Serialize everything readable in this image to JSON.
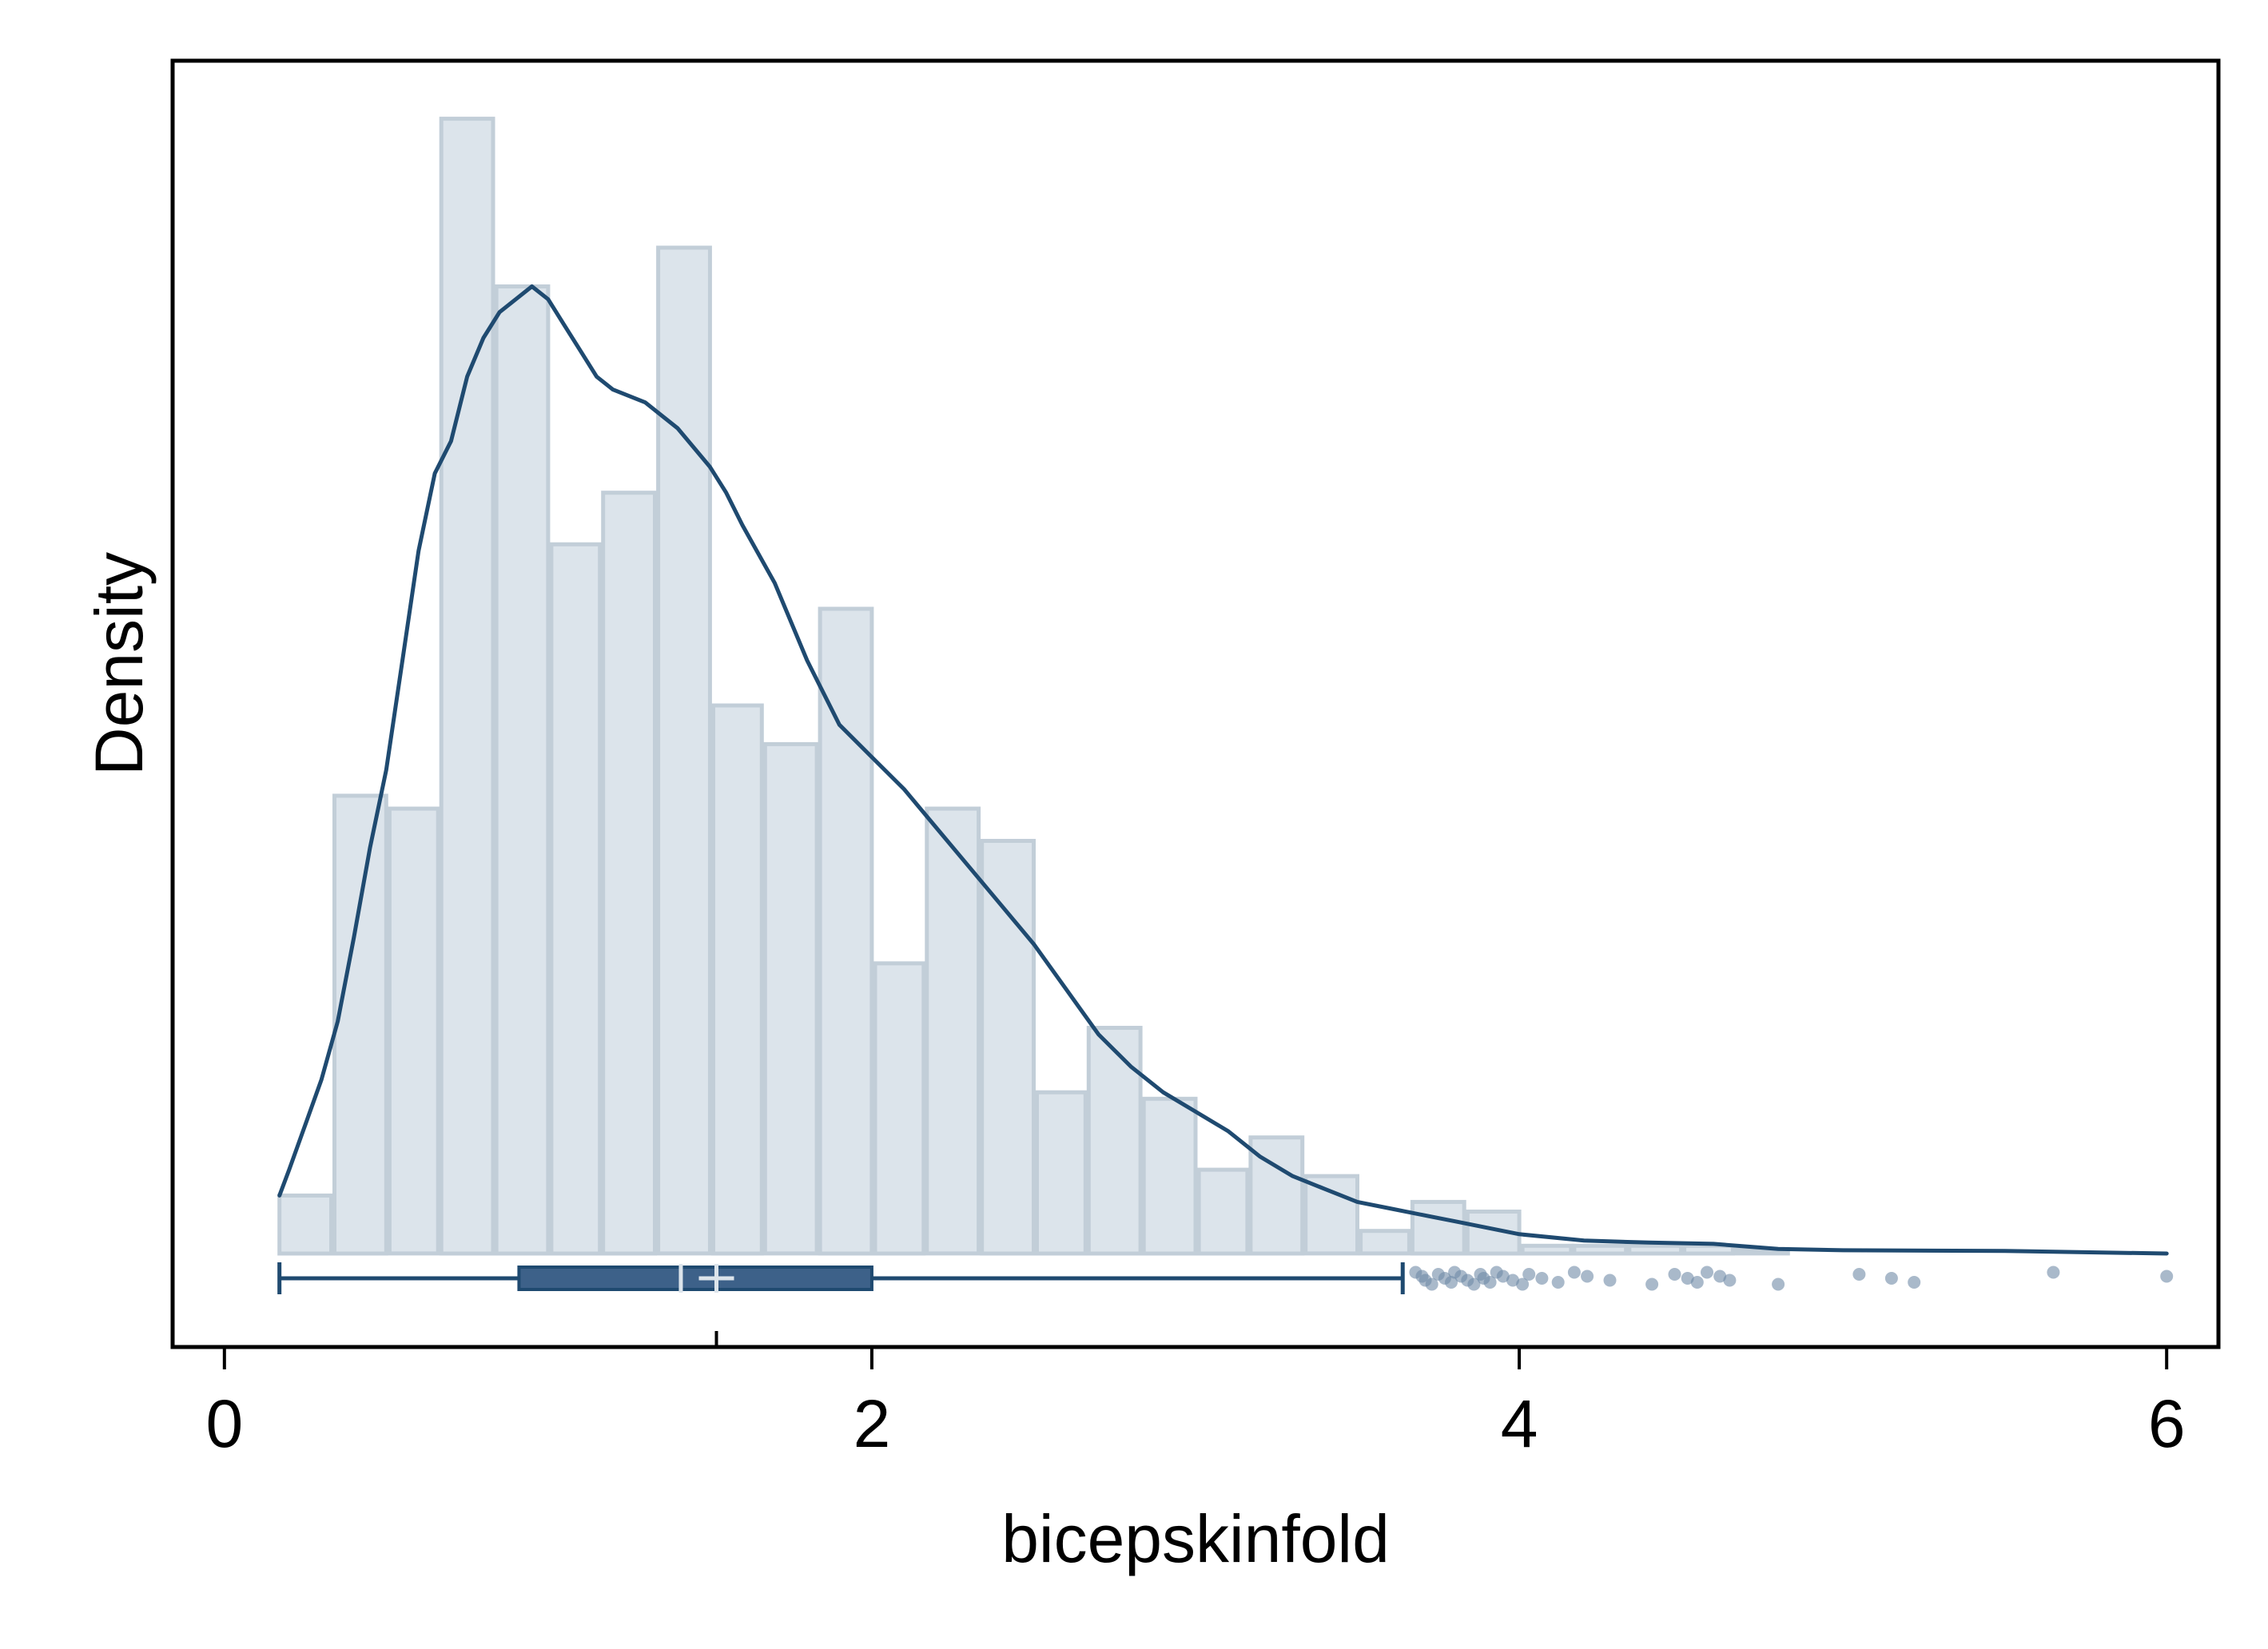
{
  "chart_data": {
    "type": "histogram",
    "xlabel": "bicepskinfold",
    "ylabel": "Density",
    "xlim": [
      -0.16,
      6.16
    ],
    "ylim": [
      -0.145,
      1.85
    ],
    "xticks": [
      0,
      2,
      4,
      6
    ],
    "ytick_labels_shown": false,
    "grid": false,
    "legend": "none",
    "histogram": {
      "bin_width": 0.167,
      "bins": [
        {
          "x0": 0.17,
          "x1": 0.33,
          "density": 0.09
        },
        {
          "x0": 0.34,
          "x1": 0.5,
          "density": 0.71
        },
        {
          "x0": 0.51,
          "x1": 0.66,
          "density": 0.69
        },
        {
          "x0": 0.67,
          "x1": 0.83,
          "density": 1.76
        },
        {
          "x0": 0.84,
          "x1": 1.0,
          "density": 1.5
        },
        {
          "x0": 1.01,
          "x1": 1.16,
          "density": 1.1
        },
        {
          "x0": 1.17,
          "x1": 1.33,
          "density": 1.18
        },
        {
          "x0": 1.34,
          "x1": 1.5,
          "density": 1.56
        },
        {
          "x0": 1.51,
          "x1": 1.66,
          "density": 0.85
        },
        {
          "x0": 1.67,
          "x1": 1.83,
          "density": 0.79
        },
        {
          "x0": 1.84,
          "x1": 2.0,
          "density": 1.0
        },
        {
          "x0": 2.01,
          "x1": 2.16,
          "density": 0.45
        },
        {
          "x0": 2.17,
          "x1": 2.33,
          "density": 0.69
        },
        {
          "x0": 2.34,
          "x1": 2.5,
          "density": 0.64
        },
        {
          "x0": 2.51,
          "x1": 2.66,
          "density": 0.25
        },
        {
          "x0": 2.67,
          "x1": 2.83,
          "density": 0.35
        },
        {
          "x0": 2.84,
          "x1": 3.0,
          "density": 0.24
        },
        {
          "x0": 3.01,
          "x1": 3.16,
          "density": 0.13
        },
        {
          "x0": 3.17,
          "x1": 3.33,
          "density": 0.18
        },
        {
          "x0": 3.34,
          "x1": 3.5,
          "density": 0.12
        },
        {
          "x0": 3.51,
          "x1": 3.66,
          "density": 0.035
        },
        {
          "x0": 3.67,
          "x1": 3.83,
          "density": 0.08
        },
        {
          "x0": 3.84,
          "x1": 4.0,
          "density": 0.065
        },
        {
          "x0": 4.01,
          "x1": 4.16,
          "density": 0.012
        },
        {
          "x0": 4.17,
          "x1": 4.33,
          "density": 0.012
        },
        {
          "x0": 4.34,
          "x1": 4.5,
          "density": 0.012
        },
        {
          "x0": 4.51,
          "x1": 4.66,
          "density": 0.012
        },
        {
          "x0": 4.67,
          "x1": 4.83,
          "density": 0.006
        }
      ]
    },
    "kde": {
      "x": [
        0.17,
        0.2,
        0.25,
        0.3,
        0.35,
        0.4,
        0.45,
        0.5,
        0.55,
        0.6,
        0.65,
        0.7,
        0.75,
        0.8,
        0.85,
        0.9,
        0.95,
        1.0,
        1.05,
        1.1,
        1.15,
        1.2,
        1.3,
        1.4,
        1.5,
        1.55,
        1.6,
        1.7,
        1.8,
        1.9,
        2.0,
        2.1,
        2.2,
        2.3,
        2.4,
        2.5,
        2.6,
        2.7,
        2.8,
        2.9,
        3.0,
        3.1,
        3.2,
        3.3,
        3.4,
        3.5,
        3.6,
        3.7,
        3.8,
        3.9,
        4.0,
        4.2,
        4.4,
        4.6,
        4.8,
        5.0,
        5.5,
        6.0
      ],
      "y": [
        0.09,
        0.13,
        0.2,
        0.27,
        0.36,
        0.49,
        0.63,
        0.75,
        0.92,
        1.09,
        1.21,
        1.26,
        1.36,
        1.42,
        1.46,
        1.48,
        1.5,
        1.48,
        1.44,
        1.4,
        1.36,
        1.34,
        1.32,
        1.28,
        1.22,
        1.18,
        1.13,
        1.04,
        0.92,
        0.82,
        0.77,
        0.72,
        0.66,
        0.6,
        0.54,
        0.48,
        0.41,
        0.34,
        0.29,
        0.25,
        0.22,
        0.19,
        0.15,
        0.12,
        0.1,
        0.08,
        0.07,
        0.06,
        0.05,
        0.04,
        0.03,
        0.02,
        0.017,
        0.015,
        0.007,
        0.005,
        0.004,
        0.0
      ]
    },
    "boxplot": {
      "min": 0.17,
      "q1": 0.91,
      "median": 1.41,
      "mean": 1.52,
      "q3": 2.0,
      "whisker_low": 0.17,
      "whisker_high": 3.64,
      "outliers": [
        3.68,
        3.7,
        3.71,
        3.73,
        3.75,
        3.77,
        3.79,
        3.8,
        3.82,
        3.84,
        3.86,
        3.88,
        3.89,
        3.91,
        3.93,
        3.95,
        3.98,
        4.01,
        4.03,
        4.07,
        4.12,
        4.17,
        4.21,
        4.28,
        4.41,
        4.48,
        4.52,
        4.55,
        4.58,
        4.62,
        4.65,
        4.8,
        5.05,
        5.15,
        5.22,
        5.65,
        6.0
      ]
    },
    "colors": {
      "bar_fill": "#dce4eb",
      "bar_edge": "#c2ced8",
      "line": "#1f4a70",
      "box_fill": "#3d6189",
      "mean_marker": "#dce4eb",
      "outlier": "#6f8aa6",
      "frame": "#000000"
    }
  }
}
